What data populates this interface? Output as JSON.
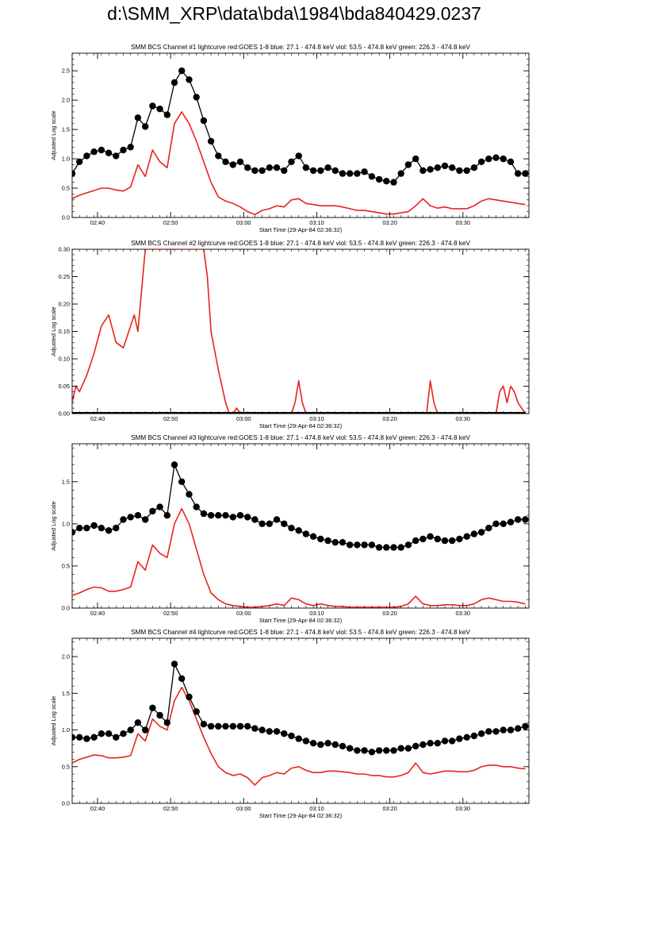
{
  "page": {
    "title": "d:\\SMM_XRP\\data\\bda\\1984\\bda840429.0237"
  },
  "colors": {
    "goes": "#e8231e",
    "bcs": "#000000",
    "axis": "#000000"
  },
  "chart_data": [
    {
      "type": "line",
      "title": "SMM BCS Channel #1 lightcurve  red:GOES 1-8  blue: 27.1 - 474.8 keV  viol: 53.5 - 474.8 keV  green: 226.3 - 474.8 keV",
      "xlabel": "Start Time (29-Apr-84 02:36:32)",
      "ylabel": "Adjusted Log scale",
      "xlim": [
        0,
        62.5
      ],
      "ylim": [
        0,
        2.8
      ],
      "x_ticks": [
        3.47,
        13.47,
        23.47,
        33.47,
        43.47,
        53.47
      ],
      "x_tick_labels": [
        "02:40",
        "02:50",
        "03:00",
        "03:10",
        "03:20",
        "03:30"
      ],
      "y_ticks": [
        0.0,
        0.5,
        1.0,
        1.5,
        2.0,
        2.5
      ],
      "y_tick_labels": [
        "0.0",
        "0.5",
        "1.0",
        "1.5",
        "2.0",
        "2.5"
      ],
      "grid": false,
      "series": [
        {
          "color": "red",
          "style": "line",
          "x": [
            0,
            1,
            2,
            3,
            4,
            5,
            6,
            7,
            8,
            9,
            10,
            11,
            12,
            13,
            14,
            15,
            16,
            17,
            18,
            19,
            20,
            21,
            22,
            23,
            24,
            25,
            26,
            27,
            28,
            29,
            30,
            31,
            32,
            33,
            34,
            35,
            36,
            37,
            38,
            39,
            40,
            41,
            42,
            43,
            44,
            45,
            46,
            47,
            48,
            49,
            50,
            51,
            52,
            53,
            54,
            55,
            56,
            57,
            58,
            59,
            60,
            61,
            62
          ],
          "y": [
            0.32,
            0.38,
            0.42,
            0.46,
            0.5,
            0.5,
            0.47,
            0.45,
            0.52,
            0.9,
            0.7,
            1.15,
            0.95,
            0.85,
            1.6,
            1.8,
            1.6,
            1.3,
            0.95,
            0.6,
            0.35,
            0.28,
            0.24,
            0.18,
            0.1,
            0.05,
            0.12,
            0.15,
            0.2,
            0.18,
            0.3,
            0.32,
            0.24,
            0.22,
            0.2,
            0.2,
            0.2,
            0.18,
            0.15,
            0.12,
            0.12,
            0.1,
            0.08,
            0.06,
            0.06,
            0.08,
            0.1,
            0.2,
            0.32,
            0.2,
            0.16,
            0.18,
            0.15,
            0.15,
            0.15,
            0.2,
            0.28,
            0.32,
            0.3,
            0.28,
            0.26,
            0.24,
            0.22
          ]
        },
        {
          "color": "black",
          "style": "dots",
          "x": [
            0,
            1,
            2,
            3,
            4,
            5,
            6,
            7,
            8,
            9,
            10,
            11,
            12,
            13,
            14,
            15,
            16,
            17,
            18,
            19,
            20,
            21,
            22,
            23,
            24,
            25,
            26,
            27,
            28,
            29,
            30,
            31,
            32,
            33,
            34,
            35,
            36,
            37,
            38,
            39,
            40,
            41,
            42,
            43,
            44,
            45,
            46,
            47,
            48,
            49,
            50,
            51,
            52,
            53,
            54,
            55,
            56,
            57,
            58,
            59,
            60,
            61,
            62
          ],
          "y": [
            0.75,
            0.95,
            1.05,
            1.12,
            1.15,
            1.1,
            1.05,
            1.15,
            1.2,
            1.7,
            1.55,
            1.9,
            1.85,
            1.75,
            2.3,
            2.5,
            2.35,
            2.05,
            1.65,
            1.3,
            1.05,
            0.95,
            0.9,
            0.95,
            0.85,
            0.8,
            0.8,
            0.85,
            0.85,
            0.8,
            0.95,
            1.05,
            0.85,
            0.8,
            0.8,
            0.85,
            0.8,
            0.75,
            0.75,
            0.75,
            0.78,
            0.7,
            0.65,
            0.62,
            0.6,
            0.75,
            0.9,
            1.0,
            0.8,
            0.82,
            0.85,
            0.88,
            0.85,
            0.8,
            0.8,
            0.85,
            0.95,
            1.0,
            1.02,
            1.0,
            0.95,
            0.75,
            0.75
          ]
        }
      ]
    },
    {
      "type": "line",
      "title": "SMM BCS Channel #2 lightcurve  red:GOES 1-8  blue: 27.1 - 474.8 keV  viol: 53.5 - 474.8 keV  green: 226.3 - 474.8 keV",
      "xlabel": "Start Time (29-Apr-84 02:36:32)",
      "ylabel": "Adjusted Log scale",
      "xlim": [
        0,
        62.5
      ],
      "ylim": [
        0,
        0.3
      ],
      "x_ticks": [
        3.47,
        13.47,
        23.47,
        33.47,
        43.47,
        53.47
      ],
      "x_tick_labels": [
        "02:40",
        "02:50",
        "03:00",
        "03:10",
        "03:20",
        "03:30"
      ],
      "y_ticks": [
        0.0,
        0.05,
        0.1,
        0.15,
        0.2,
        0.25,
        0.3
      ],
      "y_tick_labels": [
        "0.00",
        "0.05",
        "0.10",
        "0.15",
        "0.20",
        "0.25",
        "0.30"
      ],
      "grid": false,
      "series": [
        {
          "color": "red",
          "style": "line",
          "x": [
            0,
            0.5,
            1,
            2,
            3,
            4,
            5,
            6,
            7,
            8,
            8.5,
            9,
            10,
            11,
            12,
            13,
            14,
            15,
            16,
            17,
            18,
            18.5,
            19,
            20,
            21,
            21.5,
            22,
            22.5,
            23,
            30,
            30.5,
            31,
            31.5,
            32,
            40,
            48.5,
            49,
            49.5,
            50,
            58,
            58.5,
            59,
            59.5,
            60,
            60.5,
            61,
            61.5,
            62
          ],
          "y": [
            0.02,
            0.05,
            0.04,
            0.07,
            0.11,
            0.16,
            0.18,
            0.13,
            0.12,
            0.16,
            0.18,
            0.15,
            0.3,
            0.3,
            0.3,
            0.3,
            0.3,
            0.3,
            0.3,
            0.3,
            0.3,
            0.25,
            0.15,
            0.08,
            0.02,
            0,
            0,
            0.01,
            0,
            0,
            0.02,
            0.06,
            0.02,
            0,
            0,
            0,
            0.06,
            0.02,
            0,
            0,
            0.04,
            0.05,
            0.02,
            0.05,
            0.04,
            0.02,
            0.01,
            0
          ]
        },
        {
          "color": "black",
          "style": "dots",
          "x": [
            0,
            62
          ],
          "y": [
            0,
            0
          ]
        }
      ]
    },
    {
      "type": "line",
      "title": "SMM BCS Channel #3 lightcurve  red:GOES 1-8  blue: 27.1 - 474.8 keV  viol: 53.5 - 474.8 keV  green: 226.3 - 474.8 keV",
      "xlabel": "Start Time (29-Apr-84 02:36:32)",
      "ylabel": "Adjusted Log scale",
      "xlim": [
        0,
        62.5
      ],
      "ylim": [
        0,
        1.95
      ],
      "x_ticks": [
        3.47,
        13.47,
        23.47,
        33.47,
        43.47,
        53.47
      ],
      "x_tick_labels": [
        "02:40",
        "02:50",
        "03:00",
        "03:10",
        "03:20",
        "03:30"
      ],
      "y_ticks": [
        0.0,
        0.5,
        1.0,
        1.5
      ],
      "y_tick_labels": [
        "0.0",
        "0.5",
        "1.0",
        "1.5"
      ],
      "grid": false,
      "series": [
        {
          "color": "red",
          "style": "line",
          "x": [
            0,
            1,
            2,
            3,
            4,
            5,
            6,
            7,
            8,
            9,
            10,
            11,
            12,
            13,
            14,
            15,
            16,
            17,
            18,
            19,
            20,
            21,
            22,
            23,
            24,
            25,
            26,
            27,
            28,
            29,
            30,
            31,
            32,
            33,
            34,
            35,
            36,
            37,
            38,
            39,
            40,
            41,
            42,
            43,
            44,
            45,
            46,
            47,
            48,
            49,
            50,
            51,
            52,
            53,
            54,
            55,
            56,
            57,
            58,
            59,
            60,
            61,
            62
          ],
          "y": [
            0.15,
            0.18,
            0.22,
            0.25,
            0.24,
            0.2,
            0.2,
            0.22,
            0.25,
            0.55,
            0.45,
            0.75,
            0.65,
            0.6,
            1.0,
            1.18,
            1.0,
            0.7,
            0.4,
            0.18,
            0.1,
            0.05,
            0.03,
            0.02,
            0.01,
            0.01,
            0.02,
            0.03,
            0.05,
            0.03,
            0.12,
            0.1,
            0.05,
            0.03,
            0.05,
            0.03,
            0.02,
            0.02,
            0.01,
            0.01,
            0.01,
            0.01,
            0.01,
            0.01,
            0.01,
            0.02,
            0.05,
            0.14,
            0.05,
            0.03,
            0.03,
            0.04,
            0.04,
            0.03,
            0.03,
            0.05,
            0.1,
            0.12,
            0.1,
            0.08,
            0.08,
            0.07,
            0.05
          ]
        },
        {
          "color": "black",
          "style": "dots",
          "x": [
            0,
            1,
            2,
            3,
            4,
            5,
            6,
            7,
            8,
            9,
            10,
            11,
            12,
            13,
            14,
            15,
            16,
            17,
            18,
            19,
            20,
            21,
            22,
            23,
            24,
            25,
            26,
            27,
            28,
            29,
            30,
            31,
            32,
            33,
            34,
            35,
            36,
            37,
            38,
            39,
            40,
            41,
            42,
            43,
            44,
            45,
            46,
            47,
            48,
            49,
            50,
            51,
            52,
            53,
            54,
            55,
            56,
            57,
            58,
            59,
            60,
            61,
            62
          ],
          "y": [
            0.9,
            0.95,
            0.95,
            0.98,
            0.95,
            0.92,
            0.95,
            1.05,
            1.08,
            1.1,
            1.05,
            1.15,
            1.2,
            1.1,
            1.7,
            1.5,
            1.35,
            1.2,
            1.12,
            1.1,
            1.1,
            1.1,
            1.08,
            1.1,
            1.08,
            1.05,
            1.0,
            1.0,
            1.05,
            1.0,
            0.95,
            0.92,
            0.88,
            0.85,
            0.82,
            0.8,
            0.78,
            0.78,
            0.75,
            0.75,
            0.75,
            0.75,
            0.72,
            0.72,
            0.72,
            0.72,
            0.75,
            0.8,
            0.82,
            0.85,
            0.82,
            0.8,
            0.8,
            0.82,
            0.85,
            0.88,
            0.9,
            0.95,
            1.0,
            1.0,
            1.02,
            1.05,
            1.05
          ]
        }
      ]
    },
    {
      "type": "line",
      "title": "SMM BCS Channel #4 lightcurve  red:GOES 1-8  blue: 27.1 - 474.8 keV  viol: 53.5 - 474.8 keV  green: 226.3 - 474.8 keV",
      "xlabel": "Start Time (29-Apr-84 02:36:32)",
      "ylabel": "Adjusted Log scale",
      "xlim": [
        0,
        62.5
      ],
      "ylim": [
        0,
        2.25
      ],
      "x_ticks": [
        3.47,
        13.47,
        23.47,
        33.47,
        43.47,
        53.47
      ],
      "x_tick_labels": [
        "02:40",
        "02:50",
        "03:00",
        "03:10",
        "03:20",
        "03:30"
      ],
      "y_ticks": [
        0.0,
        0.5,
        1.0,
        1.5,
        2.0
      ],
      "y_tick_labels": [
        "0.0",
        "0.5",
        "1.0",
        "1.5",
        "2.0"
      ],
      "grid": false,
      "series": [
        {
          "color": "red",
          "style": "line",
          "x": [
            0,
            1,
            2,
            3,
            4,
            5,
            6,
            7,
            8,
            9,
            10,
            11,
            12,
            13,
            14,
            15,
            16,
            17,
            18,
            19,
            20,
            21,
            22,
            23,
            24,
            25,
            26,
            27,
            28,
            29,
            30,
            31,
            32,
            33,
            34,
            35,
            36,
            37,
            38,
            39,
            40,
            41,
            42,
            43,
            44,
            45,
            46,
            47,
            48,
            49,
            50,
            51,
            52,
            53,
            54,
            55,
            56,
            57,
            58,
            59,
            60,
            61,
            62
          ],
          "y": [
            0.55,
            0.6,
            0.63,
            0.66,
            0.65,
            0.62,
            0.62,
            0.63,
            0.65,
            0.95,
            0.85,
            1.15,
            1.05,
            1.0,
            1.4,
            1.58,
            1.4,
            1.15,
            0.9,
            0.68,
            0.5,
            0.42,
            0.38,
            0.4,
            0.35,
            0.25,
            0.35,
            0.38,
            0.42,
            0.4,
            0.48,
            0.5,
            0.45,
            0.42,
            0.42,
            0.44,
            0.44,
            0.43,
            0.42,
            0.4,
            0.4,
            0.38,
            0.38,
            0.36,
            0.36,
            0.38,
            0.42,
            0.55,
            0.42,
            0.4,
            0.42,
            0.44,
            0.44,
            0.43,
            0.43,
            0.45,
            0.5,
            0.52,
            0.52,
            0.5,
            0.5,
            0.48,
            0.47
          ]
        },
        {
          "color": "black",
          "style": "dots",
          "x": [
            0,
            1,
            2,
            3,
            4,
            5,
            6,
            7,
            8,
            9,
            10,
            11,
            12,
            13,
            14,
            15,
            16,
            17,
            18,
            19,
            20,
            21,
            22,
            23,
            24,
            25,
            26,
            27,
            28,
            29,
            30,
            31,
            32,
            33,
            34,
            35,
            36,
            37,
            38,
            39,
            40,
            41,
            42,
            43,
            44,
            45,
            46,
            47,
            48,
            49,
            50,
            51,
            52,
            53,
            54,
            55,
            56,
            57,
            58,
            59,
            60,
            61,
            62
          ],
          "y": [
            0.9,
            0.9,
            0.88,
            0.9,
            0.95,
            0.95,
            0.9,
            0.95,
            1.0,
            1.1,
            1.0,
            1.3,
            1.2,
            1.1,
            1.9,
            1.7,
            1.45,
            1.25,
            1.08,
            1.05,
            1.05,
            1.05,
            1.05,
            1.05,
            1.05,
            1.02,
            1.0,
            0.98,
            0.98,
            0.95,
            0.92,
            0.88,
            0.85,
            0.82,
            0.8,
            0.82,
            0.8,
            0.78,
            0.75,
            0.72,
            0.72,
            0.7,
            0.72,
            0.72,
            0.72,
            0.75,
            0.75,
            0.78,
            0.8,
            0.82,
            0.82,
            0.85,
            0.85,
            0.88,
            0.9,
            0.92,
            0.95,
            0.98,
            0.98,
            1.0,
            1.0,
            1.02,
            1.05
          ]
        }
      ]
    }
  ]
}
